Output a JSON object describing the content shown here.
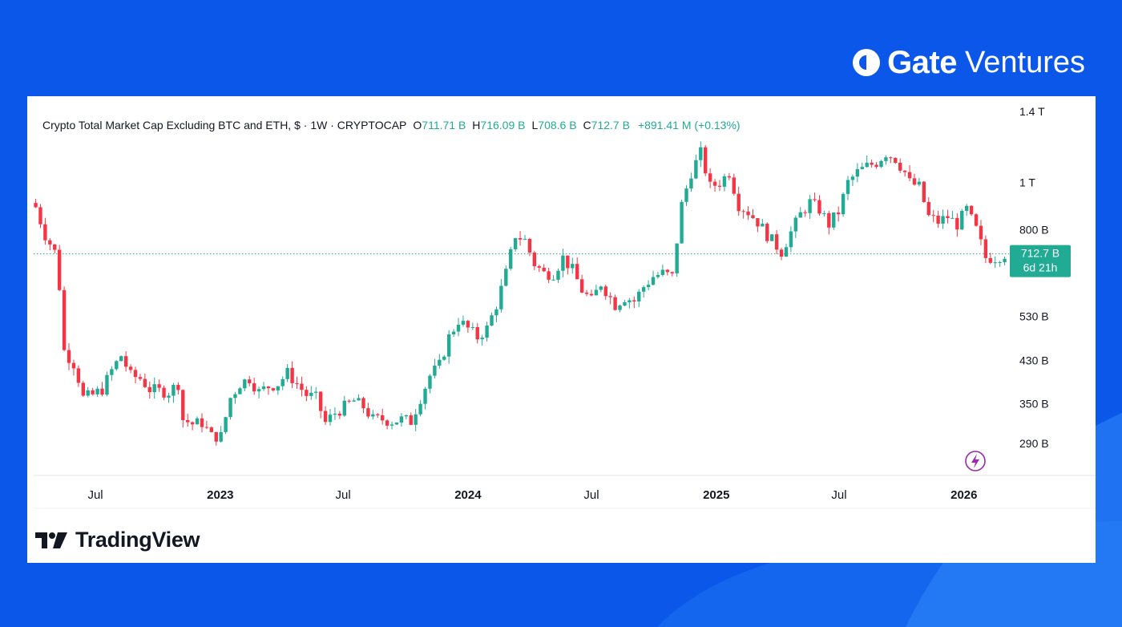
{
  "brand": {
    "name_bold": "Gate",
    "name_light": "Ventures",
    "icon": "gate-logo-icon"
  },
  "legend": {
    "title": "Crypto Total Market Cap Excluding BTC and ETH, $ · 1W · CRYPTOCAP",
    "open_label": "O",
    "open": "711.71 B",
    "high_label": "H",
    "high": "716.09 B",
    "low_label": "L",
    "low": "708.6 B",
    "close_label": "C",
    "close": "712.7 B",
    "change": "+891.41 M (+0.13%)"
  },
  "price_tag": {
    "value": "712.7 B",
    "countdown": "6d 21h"
  },
  "footer": {
    "logo_text": "TradingView",
    "icon": "tradingview-logo-icon"
  },
  "widgets": {
    "bolt": "lightning-icon"
  },
  "colors": {
    "up": "#22ab94",
    "down": "#f23645",
    "background": "#0b57ea"
  },
  "chart_data": {
    "type": "candlestick",
    "interval": "1W",
    "scale": "log",
    "y_unit": "B (billions USD)",
    "y_ticks": [
      {
        "value": 290,
        "label": "290 B"
      },
      {
        "value": 350,
        "label": "350 B"
      },
      {
        "value": 430,
        "label": "430 B"
      },
      {
        "value": 530,
        "label": "530 B"
      },
      {
        "value": 800,
        "label": "800 B"
      },
      {
        "value": 1000,
        "label": "1 T"
      },
      {
        "value": 1400,
        "label": "1.4 T"
      }
    ],
    "x_ticks": [
      {
        "date": "2022-07-01",
        "label": "Jul",
        "bold": false
      },
      {
        "date": "2023-01-01",
        "label": "2023",
        "bold": true
      },
      {
        "date": "2023-07-01",
        "label": "Jul",
        "bold": false
      },
      {
        "date": "2024-01-01",
        "label": "2024",
        "bold": true
      },
      {
        "date": "2024-07-01",
        "label": "Jul",
        "bold": false
      },
      {
        "date": "2025-01-01",
        "label": "2025",
        "bold": true
      },
      {
        "date": "2025-07-01",
        "label": "Jul",
        "bold": false
      },
      {
        "date": "2026-01-01",
        "label": "2026",
        "bold": true
      }
    ],
    "x_range": [
      "2022-04-01",
      "2026-04-01"
    ],
    "y_range": [
      250,
      1450
    ],
    "last_close": 712.7,
    "close_path": [
      [
        "2022-04-04",
        890
      ],
      [
        "2022-04-18",
        780
      ],
      [
        "2022-05-02",
        720
      ],
      [
        "2022-05-09",
        610
      ],
      [
        "2022-05-16",
        450
      ],
      [
        "2022-06-01",
        420
      ],
      [
        "2022-06-13",
        360
      ],
      [
        "2022-06-27",
        365
      ],
      [
        "2022-07-11",
        375
      ],
      [
        "2022-07-25",
        410
      ],
      [
        "2022-08-08",
        440
      ],
      [
        "2022-08-22",
        400
      ],
      [
        "2022-09-05",
        395
      ],
      [
        "2022-09-19",
        375
      ],
      [
        "2022-10-03",
        372
      ],
      [
        "2022-10-17",
        370
      ],
      [
        "2022-10-31",
        385
      ],
      [
        "2022-11-07",
        325
      ],
      [
        "2022-11-21",
        318
      ],
      [
        "2022-12-05",
        320
      ],
      [
        "2022-12-19",
        300
      ],
      [
        "2023-01-02",
        300
      ],
      [
        "2023-01-16",
        360
      ],
      [
        "2023-01-30",
        385
      ],
      [
        "2023-02-13",
        395
      ],
      [
        "2023-02-27",
        370
      ],
      [
        "2023-03-13",
        380
      ],
      [
        "2023-03-27",
        385
      ],
      [
        "2023-04-10",
        405
      ],
      [
        "2023-04-24",
        385
      ],
      [
        "2023-05-08",
        365
      ],
      [
        "2023-05-22",
        360
      ],
      [
        "2023-06-05",
        320
      ],
      [
        "2023-06-19",
        335
      ],
      [
        "2023-07-03",
        345
      ],
      [
        "2023-07-17",
        355
      ],
      [
        "2023-07-31",
        345
      ],
      [
        "2023-08-14",
        325
      ],
      [
        "2023-08-28",
        325
      ],
      [
        "2023-09-11",
        322
      ],
      [
        "2023-09-25",
        325
      ],
      [
        "2023-10-09",
        322
      ],
      [
        "2023-10-23",
        360
      ],
      [
        "2023-11-06",
        400
      ],
      [
        "2023-11-20",
        420
      ],
      [
        "2023-12-04",
        480
      ],
      [
        "2023-12-18",
        520
      ],
      [
        "2024-01-01",
        500
      ],
      [
        "2024-01-15",
        480
      ],
      [
        "2024-01-29",
        500
      ],
      [
        "2024-02-12",
        560
      ],
      [
        "2024-02-26",
        650
      ],
      [
        "2024-03-11",
        780
      ],
      [
        "2024-03-25",
        760
      ],
      [
        "2024-04-08",
        680
      ],
      [
        "2024-04-22",
        650
      ],
      [
        "2024-05-06",
        650
      ],
      [
        "2024-05-20",
        700
      ],
      [
        "2024-06-03",
        660
      ],
      [
        "2024-06-17",
        600
      ],
      [
        "2024-07-01",
        570
      ],
      [
        "2024-07-15",
        620
      ],
      [
        "2024-08-05",
        560
      ],
      [
        "2024-08-19",
        580
      ],
      [
        "2024-09-02",
        570
      ],
      [
        "2024-09-16",
        610
      ],
      [
        "2024-09-30",
        640
      ],
      [
        "2024-10-14",
        650
      ],
      [
        "2024-10-28",
        640
      ],
      [
        "2024-11-11",
        900
      ],
      [
        "2024-11-25",
        1050
      ],
      [
        "2024-12-09",
        1150
      ],
      [
        "2024-12-23",
        980
      ],
      [
        "2025-01-06",
        1000
      ],
      [
        "2025-01-20",
        1050
      ],
      [
        "2025-02-03",
        900
      ],
      [
        "2025-02-17",
        870
      ],
      [
        "2025-03-03",
        830
      ],
      [
        "2025-03-17",
        780
      ],
      [
        "2025-04-07",
        720
      ],
      [
        "2025-04-21",
        790
      ],
      [
        "2025-05-05",
        860
      ],
      [
        "2025-05-19",
        910
      ],
      [
        "2025-06-02",
        880
      ],
      [
        "2025-06-16",
        820
      ],
      [
        "2025-06-30",
        870
      ],
      [
        "2025-07-14",
        1000
      ],
      [
        "2025-07-28",
        1050
      ],
      [
        "2025-08-11",
        1080
      ],
      [
        "2025-08-25",
        1100
      ],
      [
        "2025-09-08",
        1150
      ],
      [
        "2025-09-22",
        1120
      ],
      [
        "2025-10-06",
        1050
      ],
      [
        "2025-10-13",
        1000
      ],
      [
        "2025-10-27",
        980
      ],
      [
        "2025-11-10",
        850
      ],
      [
        "2025-11-24",
        830
      ],
      [
        "2025-12-08",
        850
      ],
      [
        "2025-12-22",
        820
      ],
      [
        "2026-01-05",
        880
      ],
      [
        "2026-01-19",
        800
      ],
      [
        "2026-02-02",
        700
      ],
      [
        "2026-02-16",
        700
      ],
      [
        "2026-03-02",
        712.7
      ]
    ]
  }
}
